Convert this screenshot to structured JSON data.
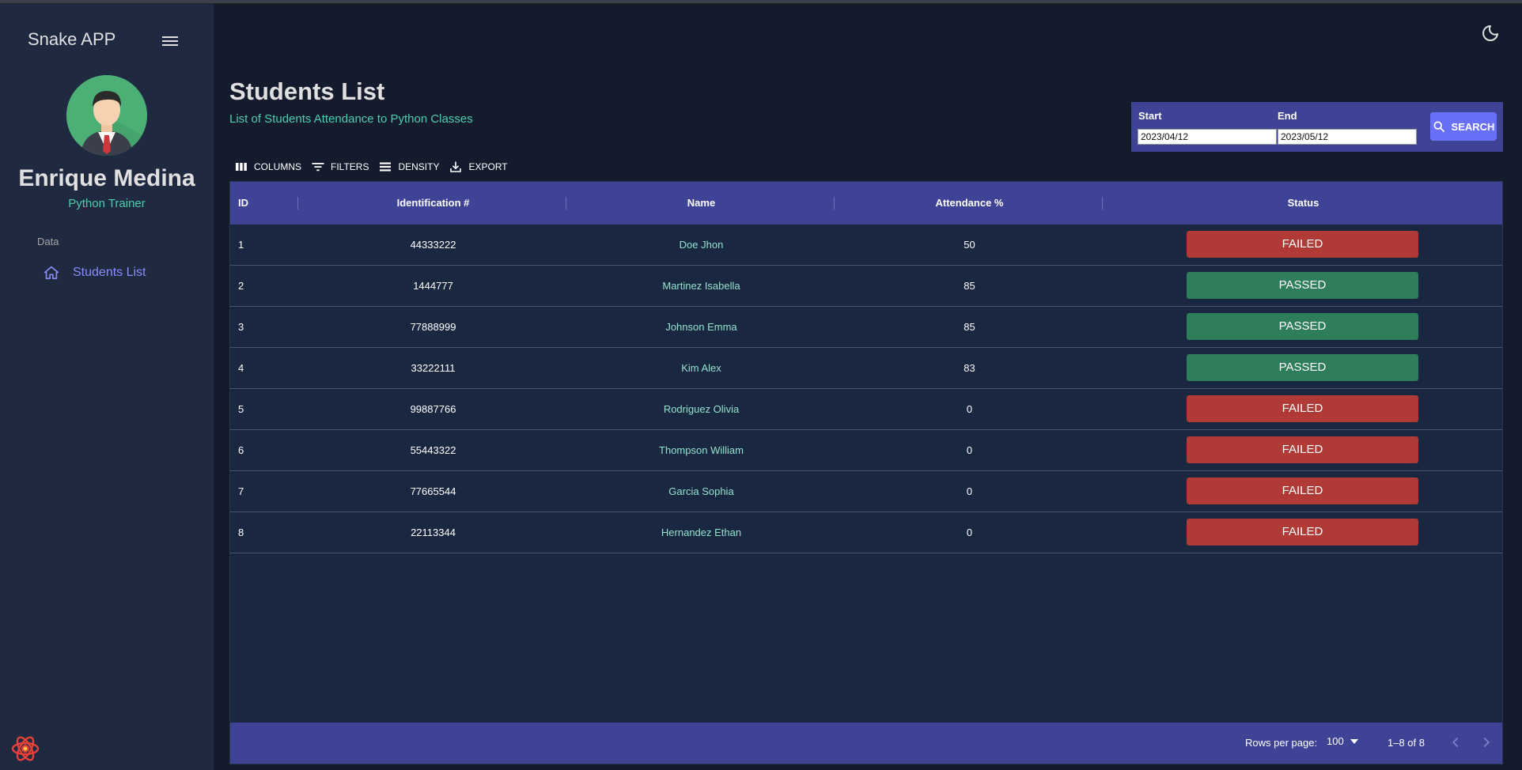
{
  "sidebar": {
    "app_title": "Snake APP",
    "user_name": "Enrique Medina",
    "user_role": "Python Trainer",
    "section_label": "Data",
    "nav_items": [
      {
        "label": "Students List",
        "icon": "home-icon"
      }
    ]
  },
  "header": {
    "title": "Students List",
    "subtitle": "List of Students Attendance to Python Classes"
  },
  "date_filter": {
    "start_label": "Start",
    "start_value": "2023/04/12",
    "end_label": "End",
    "end_value": "2023/05/12",
    "search_label": "SEARCH"
  },
  "toolbar": {
    "columns_label": "COLUMNS",
    "filters_label": "FILTERS",
    "density_label": "DENSITY",
    "export_label": "EXPORT"
  },
  "table": {
    "columns": [
      "ID",
      "Identification #",
      "Name",
      "Attendance %",
      "Status"
    ],
    "rows": [
      {
        "id": "1",
        "ident": "44333222",
        "name": "Doe Jhon",
        "attendance": "50",
        "status": "FAILED"
      },
      {
        "id": "2",
        "ident": "1444777",
        "name": "Martinez Isabella",
        "attendance": "85",
        "status": "PASSED"
      },
      {
        "id": "3",
        "ident": "77888999",
        "name": "Johnson Emma",
        "attendance": "85",
        "status": "PASSED"
      },
      {
        "id": "4",
        "ident": "33222111",
        "name": "Kim Alex",
        "attendance": "83",
        "status": "PASSED"
      },
      {
        "id": "5",
        "ident": "99887766",
        "name": "Rodriguez Olivia",
        "attendance": "0",
        "status": "FAILED"
      },
      {
        "id": "6",
        "ident": "55443322",
        "name": "Thompson William",
        "attendance": "0",
        "status": "FAILED"
      },
      {
        "id": "7",
        "ident": "77665544",
        "name": "Garcia Sophia",
        "attendance": "0",
        "status": "FAILED"
      },
      {
        "id": "8",
        "ident": "22113344",
        "name": "Hernandez Ethan",
        "attendance": "0",
        "status": "FAILED"
      }
    ]
  },
  "footer": {
    "rows_per_page_label": "Rows per page:",
    "rows_per_page_value": "100",
    "range_text": "1–8 of 8"
  },
  "colors": {
    "passed": "#2e7d5b",
    "failed": "#b03a36",
    "accent": "#3e4396",
    "teal": "#4cceac"
  }
}
